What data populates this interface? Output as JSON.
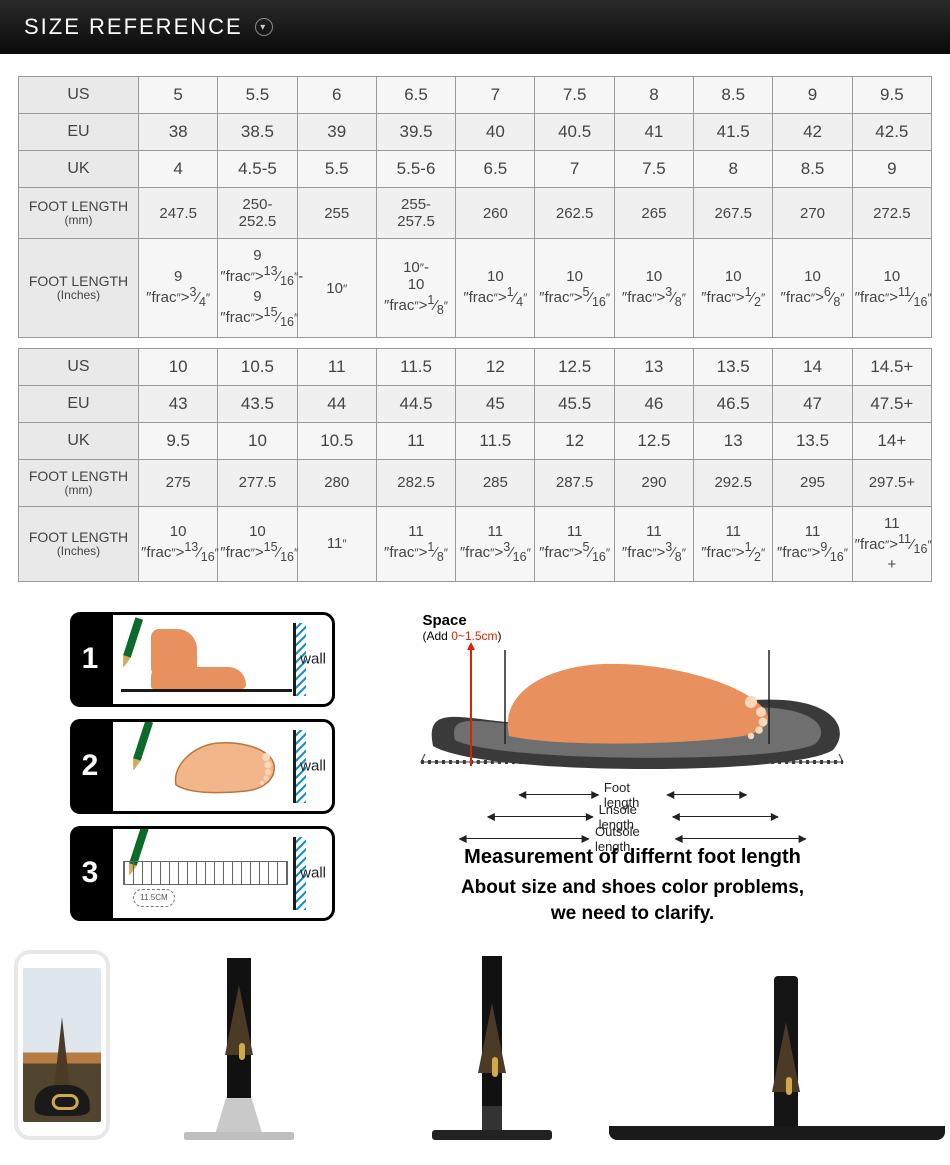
{
  "header": {
    "title": "SIZE REFERENCE"
  },
  "table": {
    "row_headers": [
      "US",
      "EU",
      "UK",
      "FOOT LENGTH",
      "FOOT LENGTH"
    ],
    "row_header_subs": [
      "",
      "",
      "",
      "(mm)",
      "(Inches)"
    ],
    "block1": {
      "US": [
        "5",
        "5.5",
        "6",
        "6.5",
        "7",
        "7.5",
        "8",
        "8.5",
        "9",
        "9.5"
      ],
      "EU": [
        "38",
        "38.5",
        "39",
        "39.5",
        "40",
        "40.5",
        "41",
        "41.5",
        "42",
        "42.5"
      ],
      "UK": [
        "4",
        "4.5-5",
        "5.5",
        "5.5-6",
        "6.5",
        "7",
        "7.5",
        "8",
        "8.5",
        "9"
      ],
      "MM": [
        "247.5",
        "250-\n252.5",
        "255",
        "255-\n257.5",
        "260",
        "262.5",
        "265",
        "267.5",
        "270",
        "272.5"
      ],
      "IN": [
        "9 3/4\"",
        "9 13/16\"-\n9 15/16\"",
        "10\"",
        "10\"-\n10 1/8\"",
        "10 1/4\"",
        "10 5/16\"",
        "10 3/8\"",
        "10 1/2\"",
        "10 6/8\"",
        "10 11/16\""
      ]
    },
    "block2": {
      "US": [
        "10",
        "10.5",
        "11",
        "11.5",
        "12",
        "12.5",
        "13",
        "13.5",
        "14",
        "14.5+"
      ],
      "EU": [
        "43",
        "43.5",
        "44",
        "44.5",
        "45",
        "45.5",
        "46",
        "46.5",
        "47",
        "47.5+"
      ],
      "UK": [
        "9.5",
        "10",
        "10.5",
        "11",
        "11.5",
        "12",
        "12.5",
        "13",
        "13.5",
        "14+"
      ],
      "MM": [
        "275",
        "277.5",
        "280",
        "282.5",
        "285",
        "287.5",
        "290",
        "292.5",
        "295",
        "297.5+"
      ],
      "IN": [
        "10 13/16\"",
        "10 15/16\"",
        "11\"",
        "11 1/8\"",
        "11 3/16\"",
        "11 5/16\"",
        "11 3/8\"",
        "11 1/2\"",
        "11 9/16\"",
        "11 11/16\"+"
      ]
    }
  },
  "steps": {
    "wall_label": "wall",
    "ruler_text": "11.5CM"
  },
  "diagram": {
    "space_label": "Space",
    "space_add": "(Add 0~1.5cm)",
    "foot_length": "Foot length",
    "insole_length": "Lnsole length",
    "outsole_length": "Outsole length",
    "title": "Measurement of differnt foot length",
    "subtitle": "About size and shoes color problems,\nwe need to clarify."
  },
  "colors": {
    "header_bg_top": "#2a2a2a",
    "header_bg_bottom": "#0a0a0a",
    "table_border": "#9a9a9a",
    "table_header_bg": "#e9e9e9",
    "table_cell_bg": "#f6f6f6",
    "foot_skin": "#e8915e",
    "sole_dark": "#3a3a3a",
    "sole_inner": "#6f6f6f",
    "accent_red": "#dd2200",
    "pencil_green": "#0a6b2a",
    "hatch_blue": "#1890c9"
  }
}
